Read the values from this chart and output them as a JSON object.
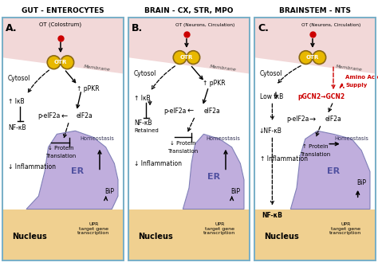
{
  "title_A": "GUT - ENTEROCYTES",
  "title_B": "BRAIN - CX, STR, MPO",
  "title_C": "BRAINSTEM - NTS",
  "panel_labels": [
    "A.",
    "B.",
    "C."
  ],
  "bg_extracellular": "#f2d8d8",
  "bg_cytosol": "#ffffff",
  "bg_er": "#c0aedd",
  "bg_nucleus": "#f0d090",
  "otr_fill": "#e8b800",
  "otr_edge": "#8B6914",
  "red_dot": "#cc0000",
  "arrow_black": "#000000",
  "arrow_red": "#cc0000",
  "text_black": "#000000",
  "text_red": "#cc0000",
  "border_color": "#7ab0c8",
  "fig_bg": "#ffffff",
  "membrane_color": "#ddc8c8"
}
